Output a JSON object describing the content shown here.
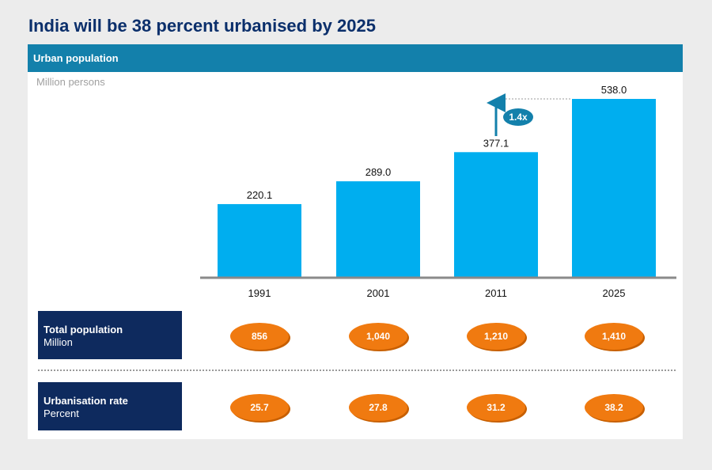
{
  "title": "India will be 38 percent urbanised by 2025",
  "panel": {
    "header": "Urban population",
    "unit_label": "Million persons"
  },
  "chart_data": {
    "type": "bar",
    "title": "Urban population",
    "ylabel": "Million persons",
    "xlabel": "",
    "categories": [
      "1991",
      "2001",
      "2011",
      "2025"
    ],
    "values": [
      220.1,
      289.0,
      377.1,
      538.0
    ],
    "value_labels": [
      "220.1",
      "289.0",
      "377.1",
      "538.0"
    ],
    "ylim": [
      0,
      538.0
    ],
    "bar_color": "#00aeef",
    "annotation": {
      "text": "1.4x",
      "from_category": "2011",
      "to_category": "2025",
      "color": "#1380ab"
    }
  },
  "rows": [
    {
      "title": "Total population",
      "unit": "Million",
      "values": [
        "856",
        "1,040",
        "1,210",
        "1,410"
      ]
    },
    {
      "title": "Urbanisation rate",
      "unit": "Percent",
      "values": [
        "25.7",
        "27.8",
        "31.2",
        "38.2"
      ]
    }
  ],
  "colors": {
    "title": "#0b2f6b",
    "header": "#1380ab",
    "row_box": "#0e2a5e",
    "oval": "#f07a10"
  }
}
